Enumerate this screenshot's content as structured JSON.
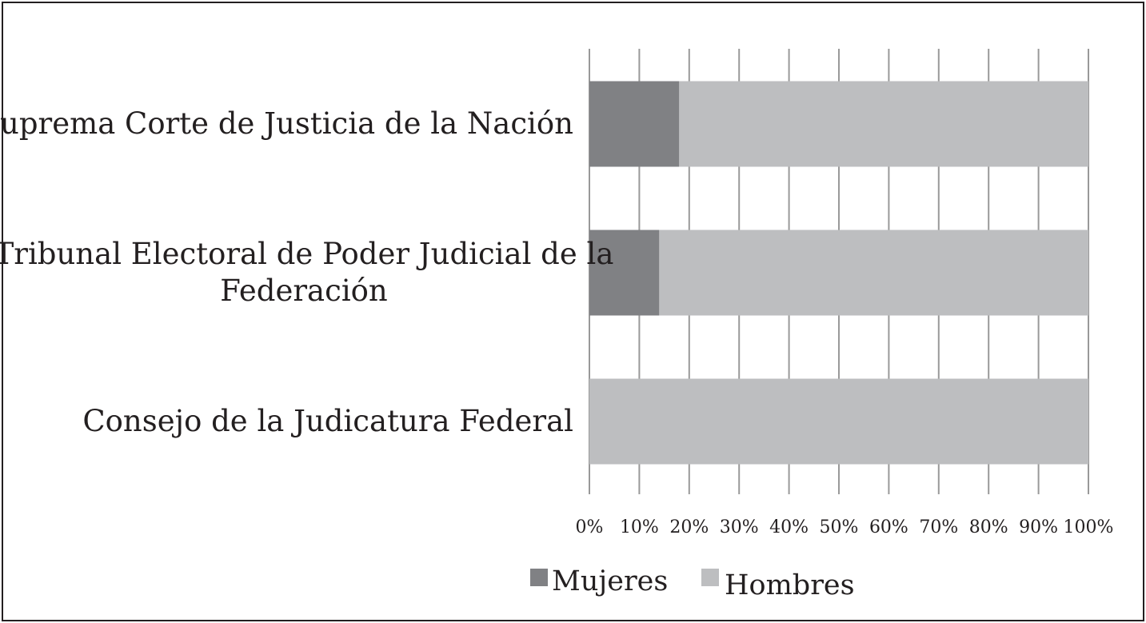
{
  "chart_data": {
    "type": "bar",
    "orientation": "horizontal",
    "stacked": "percent",
    "categories": [
      [
        "Suprema Corte de Justicia de la Nación"
      ],
      [
        "Tribunal Electoral de Poder Judicial de la",
        "Federación"
      ],
      [
        "Consejo de la Judicatura Federal"
      ]
    ],
    "series": [
      {
        "name": "Mujeres",
        "color": "#808184",
        "values": [
          18,
          14,
          0
        ]
      },
      {
        "name": "Hombres",
        "color": "#bdbec0",
        "values": [
          82,
          86,
          100
        ]
      }
    ],
    "xlim": [
      0,
      100
    ],
    "x_ticks": [
      "0%",
      "10%",
      "20%",
      "30%",
      "40%",
      "50%",
      "60%",
      "70%",
      "80%",
      "90%",
      "100%"
    ],
    "grid": true,
    "grid_color": "#999999",
    "legend_position": "bottom",
    "title": "",
    "xlabel": "",
    "ylabel": ""
  }
}
